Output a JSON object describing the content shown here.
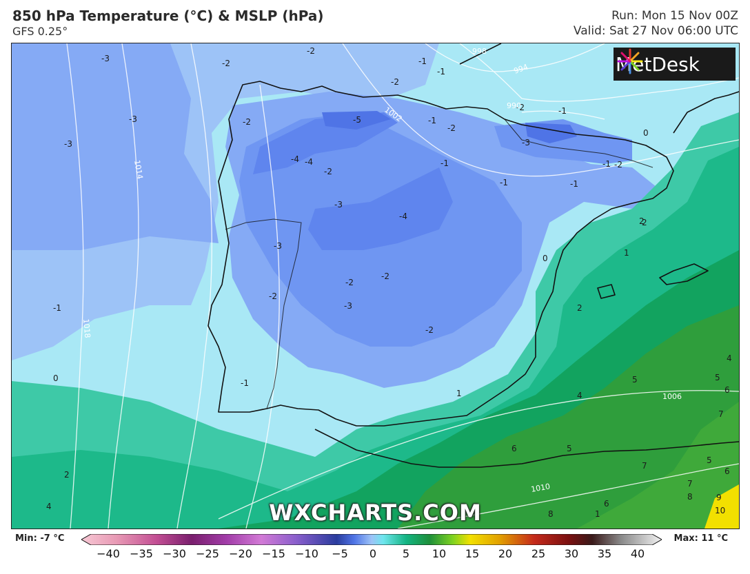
{
  "header": {
    "title": "850 hPa Temperature (°C) & MSLP (hPa)",
    "model": "GFS 0.25°",
    "run": "Run: Mon 15 Nov 00Z",
    "valid": "Valid: Sat 27 Nov 06:00 UTC"
  },
  "brand": {
    "name": "MetDesk"
  },
  "watermark": "WXCHARTS.COM",
  "legend": {
    "min_label": "Min: -7 °C",
    "max_label": "Max: 11 °C",
    "ticks": [
      "−40",
      "−35",
      "−30",
      "−25",
      "−20",
      "−15",
      "−10",
      "−5",
      "0",
      "5",
      "10",
      "15",
      "20",
      "25",
      "30",
      "35",
      "40"
    ]
  },
  "colors": {
    "temp_minus5": "#4f74e6",
    "temp_minus4": "#5f85ee",
    "temp_minus3": "#6f96f2",
    "temp_minus2": "#85aaf5",
    "temp_minus1": "#9dc3f7",
    "temp_0": "#a9e8f5",
    "temp_1": "#3ec9a7",
    "temp_2": "#1db98a",
    "temp_4": "#12a35f",
    "temp_6": "#2f9e3c",
    "temp_8": "#3fa93a",
    "temp_10": "#f2e000",
    "coastline": "#111111",
    "isobar": "#ffffff"
  },
  "temp_labels": [
    "-3",
    "-3",
    "-3",
    "-2",
    "-2",
    "-2",
    "-2",
    "-1",
    "-1",
    "-1",
    "-5",
    "-2",
    "-1",
    "-2",
    "-1",
    "-4",
    "-4",
    "-2",
    "-3",
    "-4",
    "-1",
    "-1",
    "-3",
    "-2",
    "-2",
    "-3",
    "-2",
    "-3",
    "-2",
    "-1",
    "0",
    "1",
    "2",
    "2",
    "0",
    "-1",
    "-1",
    "2",
    "1",
    "0",
    "5",
    "4",
    "6",
    "5",
    "6",
    "5",
    "7",
    "7",
    "4",
    "5",
    "6",
    "7",
    "8",
    "9",
    "6",
    "8",
    "10",
    "2",
    "4",
    "-2",
    "1"
  ],
  "isobar_labels": [
    "1014",
    "1018",
    "1002",
    "998",
    "994",
    "990",
    "1006",
    "1010"
  ]
}
